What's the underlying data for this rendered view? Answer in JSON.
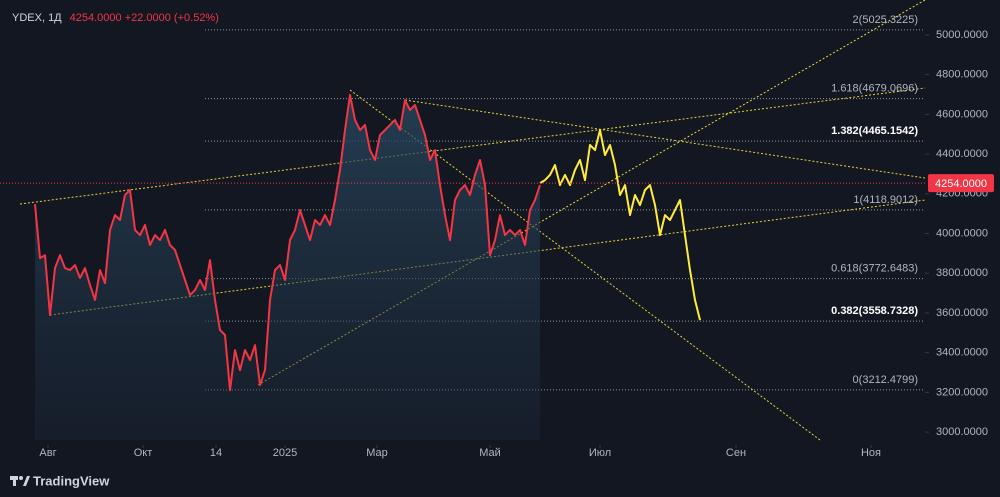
{
  "chart_data": {
    "type": "line",
    "title": "YDEX, 1Д",
    "quote": "4254.0000 +22.0000 (+0.52%)",
    "brand": "TradingView",
    "xlim": [
      0,
      925
    ],
    "ylim": [
      2935,
      5176
    ],
    "xticks": [
      {
        "value": 48,
        "label": "Авг"
      },
      {
        "value": 143,
        "label": "Окт"
      },
      {
        "value": 216,
        "label": "14"
      },
      {
        "value": 285,
        "label": "2025"
      },
      {
        "value": 377,
        "label": "Мар"
      },
      {
        "value": 490,
        "label": "Май"
      },
      {
        "value": 600,
        "label": "Июл"
      },
      {
        "value": 736,
        "label": "Сен"
      },
      {
        "value": 871,
        "label": "Ноя"
      }
    ],
    "yticks": [
      {
        "value": 3000,
        "label": "3000.0000"
      },
      {
        "value": 3200,
        "label": "3200.0000"
      },
      {
        "value": 3400,
        "label": "3400.0000"
      },
      {
        "value": 3600,
        "label": "3600.0000"
      },
      {
        "value": 3800,
        "label": "3800.0000"
      },
      {
        "value": 4000,
        "label": "4000.0000"
      },
      {
        "value": 4200,
        "label": "4200.0000"
      },
      {
        "value": 4400,
        "label": "4400.0000"
      },
      {
        "value": 4600,
        "label": "4600.0000"
      },
      {
        "value": 4800,
        "label": "4800.0000"
      },
      {
        "value": 5000,
        "label": "5000.0000"
      }
    ],
    "last_price": {
      "value": 4254,
      "label": "4254.0000",
      "color": "#f23645"
    },
    "fib_color": "#b2b5be",
    "fib_levels": [
      {
        "value": 5025.3225,
        "label": "2(5025.3225)",
        "bold": false
      },
      {
        "value": 4679.0696,
        "label": "1.618(4679.0696)",
        "bold": false
      },
      {
        "value": 4465.1542,
        "label": "1.382(4465.1542)",
        "bold": true
      },
      {
        "value": 4118.9012,
        "label": "1(4118.9012)",
        "bold": false
      },
      {
        "value": 3772.6483,
        "label": "0.618(3772.6483)",
        "bold": false
      },
      {
        "value": 3558.7328,
        "label": "0.382(3558.7328)",
        "bold": true
      },
      {
        "value": 3212.4799,
        "label": "0(3212.4799)",
        "bold": false
      }
    ],
    "series": [
      {
        "color": "#f23645",
        "area": true,
        "x": [
          35,
          40,
          45,
          50,
          55,
          60,
          65,
          70,
          75,
          80,
          85,
          90,
          95,
          100,
          105,
          110,
          115,
          120,
          125,
          130,
          135,
          140,
          145,
          150,
          155,
          160,
          165,
          170,
          175,
          180,
          185,
          190,
          195,
          200,
          205,
          210,
          215,
          220,
          225,
          230,
          235,
          240,
          245,
          250,
          255,
          260,
          265,
          270,
          275,
          280,
          285,
          290,
          295,
          300,
          305,
          310,
          315,
          320,
          325,
          330,
          335,
          340,
          345,
          350,
          355,
          360,
          365,
          370,
          375,
          380,
          385,
          390,
          395,
          400,
          405,
          410,
          415,
          420,
          425,
          430,
          435,
          440,
          445,
          450,
          455,
          460,
          465,
          470,
          475,
          480,
          485,
          490,
          495,
          500,
          505,
          510,
          515,
          520,
          525,
          530,
          535,
          540
        ],
        "values": [
          4148,
          3876,
          3891,
          3589,
          3826,
          3891,
          3826,
          3816,
          3841,
          3776,
          3826,
          3740,
          3665,
          3816,
          3750,
          4018,
          4093,
          4068,
          4194,
          4219,
          4018,
          3992,
          4043,
          3942,
          3992,
          3967,
          4018,
          3942,
          3917,
          3841,
          3766,
          3690,
          3715,
          3766,
          3715,
          3866,
          3665,
          3514,
          3489,
          3211,
          3413,
          3312,
          3413,
          3363,
          3438,
          3237,
          3312,
          3665,
          3816,
          3841,
          3766,
          3967,
          4018,
          4118,
          4043,
          3967,
          4068,
          4043,
          4093,
          4043,
          4169,
          4320,
          4521,
          4698,
          4572,
          4521,
          4547,
          4420,
          4370,
          4496,
          4521,
          4547,
          4572,
          4521,
          4672,
          4622,
          4647,
          4572,
          4496,
          4370,
          4420,
          4244,
          4093,
          3967,
          4169,
          4219,
          4244,
          4194,
          4295,
          4370,
          4244,
          3891,
          3967,
          4093,
          3992,
          4018,
          3992,
          4018,
          3942,
          4118,
          4169,
          4244
        ]
      },
      {
        "color": "#ffeb3b",
        "area": false,
        "x": [
          540,
          545,
          550,
          555,
          560,
          565,
          570,
          575,
          580,
          585,
          590,
          595,
          600,
          605,
          610,
          615,
          620,
          625,
          630,
          635,
          640,
          645,
          650,
          655,
          660,
          665,
          670,
          675,
          680,
          685,
          690,
          695,
          700
        ],
        "values": [
          4254,
          4269,
          4295,
          4345,
          4244,
          4295,
          4244,
          4320,
          4370,
          4269,
          4446,
          4420,
          4521,
          4395,
          4446,
          4345,
          4194,
          4244,
          4093,
          4194,
          4143,
          4219,
          4244,
          4143,
          3992,
          4093,
          4068,
          4118,
          4169,
          3992,
          3816,
          3665,
          3564
        ]
      }
    ]
  }
}
